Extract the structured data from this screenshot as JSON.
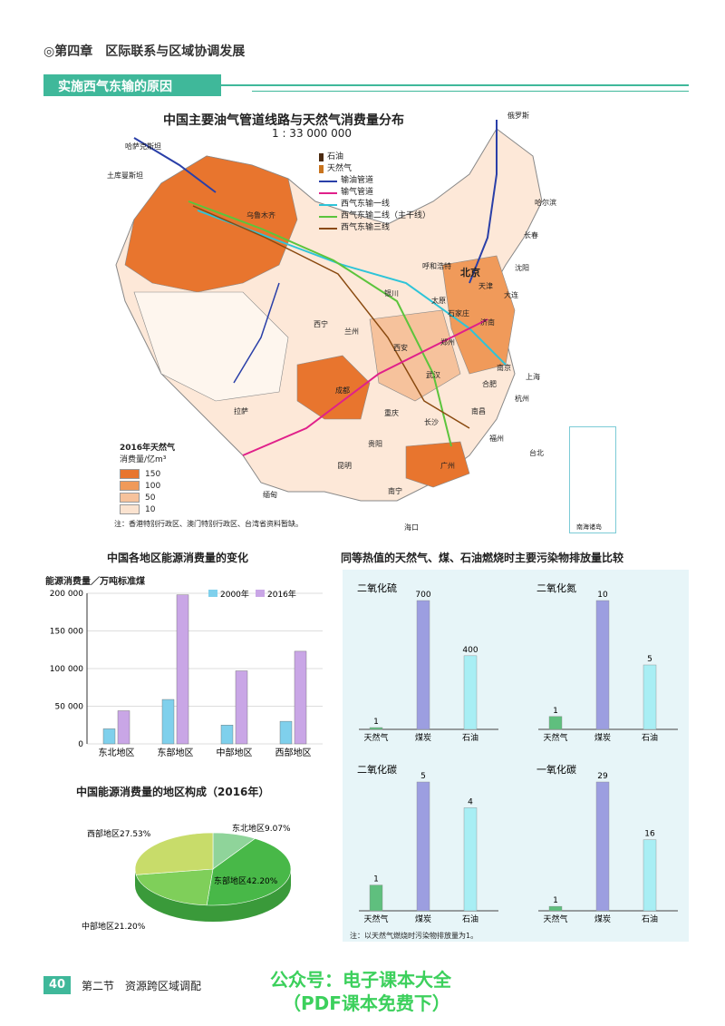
{
  "header": {
    "chapter": "◎第四章　区际联系与区域协调发展",
    "section": "实施西气东输的原因"
  },
  "map": {
    "title": "中国主要油气管道线路与天然气消费量分布",
    "scale": "1 : 33 000 000",
    "legend": [
      {
        "label": "石油",
        "kind": "oil-icon",
        "color": "#4b2a10"
      },
      {
        "label": "天然气",
        "kind": "gas-icon",
        "color": "#c9741e"
      },
      {
        "label": "输油管道",
        "kind": "line",
        "color": "#2a3fa8"
      },
      {
        "label": "输气管道",
        "kind": "line",
        "color": "#e0208a"
      },
      {
        "label": "西气东输一线",
        "kind": "line",
        "color": "#2ec4d8"
      },
      {
        "label": "西气东输二线（主干线）",
        "kind": "line",
        "color": "#5cc43c"
      },
      {
        "label": "西气东输三线",
        "kind": "line",
        "color": "#8a4a10"
      }
    ],
    "consumption_legend": {
      "title1": "2016年天然气",
      "title2": "消费量/亿m³",
      "levels": [
        {
          "label": "150",
          "color": "#e8752e"
        },
        {
          "label": "100",
          "color": "#f09a5a"
        },
        {
          "label": "50",
          "color": "#f6c29c"
        },
        {
          "label": "10",
          "color": "#fbe3d0"
        }
      ]
    },
    "note": "注：香港特别行政区、澳门特别行政区、台湾省资料暂缺。",
    "inset_label": "南海诸岛",
    "places": {
      "hasakh": "哈萨克斯坦",
      "turkmen": "土库曼斯坦",
      "russia": "俄罗斯",
      "urumqi": "乌鲁木齐",
      "beijing": "北京",
      "shanghai": "上海",
      "chengdu": "成都",
      "lhasa": "拉萨",
      "burma": "缅甸",
      "kunming": "昆明",
      "guangzhou": "广州",
      "wuhan": "武汉",
      "xian": "西安",
      "lanzhou": "兰州",
      "harbin": "哈尔滨",
      "shenyang": "沈阳",
      "hangzhou": "杭州",
      "nanjing": "南京",
      "taibei": "台北",
      "haikou": "海口",
      "jinan": "济南",
      "taiyuan": "太原",
      "zhengzhou": "郑州",
      "changsha": "长沙",
      "nanning": "南宁",
      "guiyang": "贵阳",
      "xining": "西宁",
      "yinchuan": "银川",
      "huhehaote": "呼和浩特",
      "chongqing": "重庆",
      "fuzhou": "福州",
      "nanchang": "南昌",
      "hefei": "合肥",
      "changchun": "长春",
      "dalian": "大连",
      "tianjin": "天津",
      "shijiazhuang": "石家庄"
    }
  },
  "regional_chart": {
    "title": "中国各地区能源消费量的变化",
    "ylabel": "能源消费量／万吨标准煤",
    "chart_data": {
      "type": "bar",
      "categories": [
        "东北地区",
        "东部地区",
        "中部地区",
        "西部地区"
      ],
      "series": [
        {
          "name": "2000年",
          "values": [
            20000,
            59000,
            25000,
            30000
          ],
          "color": "#7fd0ec"
        },
        {
          "name": "2016年",
          "values": [
            44000,
            198000,
            97000,
            123000
          ],
          "color": "#c9a6e6"
        }
      ],
      "ylim": [
        0,
        200000
      ],
      "yticks": [
        "0",
        "50 000",
        "100 000",
        "150 000",
        "200 000"
      ],
      "grid": true,
      "legend": "top-right"
    }
  },
  "pie_chart": {
    "title": "中国能源消费量的地区构成（2016年）",
    "chart_data": {
      "type": "pie",
      "slices": [
        {
          "label": "东北地区9.07%",
          "value": 9.07,
          "color": "#8fd49a"
        },
        {
          "label": "东部地区42.20%",
          "value": 42.2,
          "color": "#48b848"
        },
        {
          "label": "中部地区21.20%",
          "value": 21.2,
          "color": "#7fcf5a"
        },
        {
          "label": "西部地区27.53%",
          "value": 27.53,
          "color": "#c8dc6a"
        }
      ]
    }
  },
  "pollutant": {
    "title": "同等热值的天然气、煤、石油燃烧时主要污染物排放量比较",
    "categories": [
      "天然气",
      "煤炭",
      "石油"
    ],
    "colors": [
      "#5fbf7e",
      "#9c9ee0",
      "#a8eef4"
    ],
    "charts": [
      {
        "name": "二氧化硫",
        "values": [
          1,
          700,
          400
        ],
        "labels": [
          "1",
          "700",
          "400"
        ],
        "max": 700
      },
      {
        "name": "二氧化氮",
        "values": [
          1,
          10,
          5
        ],
        "labels": [
          "1",
          "10",
          "5"
        ],
        "max": 10
      },
      {
        "name": "二氧化碳",
        "values": [
          1,
          5,
          4
        ],
        "labels": [
          "1",
          "5",
          "4"
        ],
        "max": 5
      },
      {
        "name": "一氧化碳",
        "values": [
          1,
          29,
          16
        ],
        "labels": [
          "1",
          "29",
          "16"
        ],
        "max": 29
      }
    ],
    "note": "注：以天然气燃烧时污染物排放量为1。"
  },
  "footer": {
    "page": "40",
    "text": "第二节　资源跨区域调配"
  },
  "watermark": {
    "line1": "公众号：电子课本大全",
    "line2": "（PDF课本免费下）"
  }
}
